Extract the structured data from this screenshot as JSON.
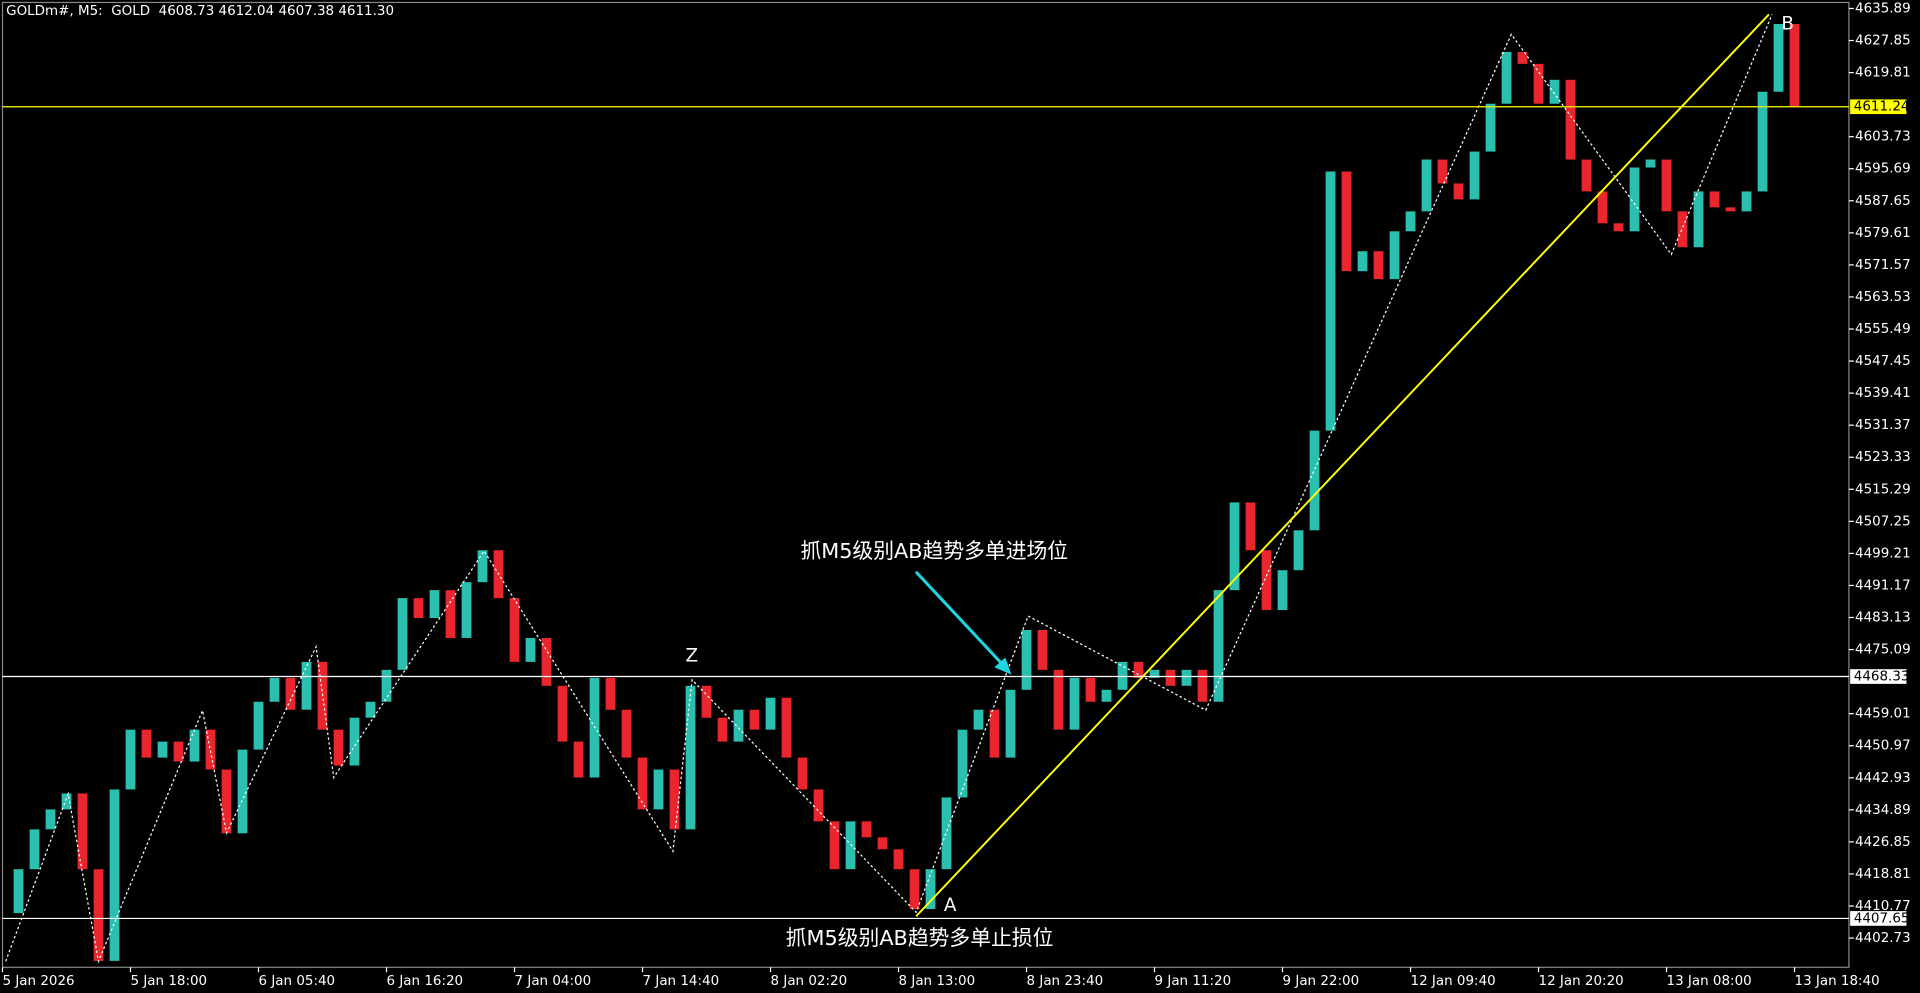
{
  "chart_data": {
    "type": "candlestick",
    "title": "GOLDm#, M5:  GOLD  4608.73 4612.04 4607.38 4611.30",
    "values": [
      4409,
      4420,
      4430,
      4435,
      4439,
      4420,
      4397,
      4440,
      4455,
      4448,
      4452,
      4447,
      4455,
      4445,
      4429,
      4450,
      4462,
      4468,
      4460,
      4472,
      4455,
      4446,
      4458,
      4462,
      4470,
      4488,
      4483,
      4490,
      4478,
      4492,
      4500,
      4488,
      4472,
      4478,
      4466,
      4452,
      4443,
      4468,
      4460,
      4448,
      4435,
      4445,
      4430,
      4466,
      4458,
      4452,
      4460,
      4455,
      4463,
      4448,
      4440,
      4432,
      4420,
      4432,
      4428,
      4425,
      4420,
      4410,
      4420,
      4438,
      4455,
      4460,
      4448,
      4465,
      4480,
      4470,
      4455,
      4468,
      4462,
      4465,
      4472,
      4468,
      4470,
      4466,
      4470,
      4462,
      4490,
      4512,
      4500,
      4485,
      4495,
      4505,
      4530,
      4595,
      4570,
      4575,
      4568,
      4580,
      4585,
      4598,
      4592,
      4588,
      4600,
      4612,
      4625,
      4622,
      4612,
      4618,
      4598,
      4590,
      4582,
      4580,
      4596,
      4598,
      4585,
      4576,
      4590,
      4586,
      4585,
      4590,
      4615,
      4632,
      4611.3
    ],
    "up_color": "#2bbfb0",
    "down_color": "#e8262c",
    "xlim": [
      0,
      115.4
    ],
    "xticks": [
      {
        "value": 0,
        "label": "5 Jan 2026"
      },
      {
        "value": 8,
        "label": "5 Jan 18:00"
      },
      {
        "value": 16,
        "label": "6 Jan 05:40"
      },
      {
        "value": 24,
        "label": "6 Jan 16:20"
      },
      {
        "value": 32,
        "label": "7 Jan 04:00"
      },
      {
        "value": 40,
        "label": "7 Jan 14:40"
      },
      {
        "value": 48,
        "label": "8 Jan 02:20"
      },
      {
        "value": 56,
        "label": "8 Jan 13:00"
      },
      {
        "value": 64,
        "label": "8 Jan 23:40"
      },
      {
        "value": 72,
        "label": "9 Jan 11:20"
      },
      {
        "value": 80,
        "label": "9 Jan 22:00"
      },
      {
        "value": 88,
        "label": "12 Jan 09:40"
      },
      {
        "value": 96,
        "label": "12 Jan 20:20"
      },
      {
        "value": 104,
        "label": "13 Jan 08:00"
      },
      {
        "value": 112,
        "label": "13 Jan 18:40"
      }
    ],
    "ylim": [
      4395.4,
      4637.4
    ],
    "yticks": [
      4635.89,
      4627.85,
      4619.81,
      4603.73,
      4595.69,
      4587.65,
      4579.61,
      4571.57,
      4563.53,
      4555.49,
      4547.45,
      4539.41,
      4531.37,
      4523.33,
      4515.29,
      4507.25,
      4499.21,
      4491.17,
      4483.13,
      4475.09,
      4459.01,
      4450.97,
      4442.93,
      4434.89,
      4426.85,
      4418.81,
      4410.77,
      4402.73
    ],
    "hlines": [
      {
        "value": 4611.24,
        "color": "#ffff00"
      },
      {
        "value": 4468.33,
        "color": "#ffffff"
      },
      {
        "value": 4407.65,
        "color": "#ffffff"
      }
    ],
    "trendline": {
      "x": [
        57.1,
        110.4
      ],
      "y": [
        4408.2,
        4634.4
      ],
      "color": "#ffff00"
    },
    "zigzag": {
      "x": [
        0.2,
        4.1,
        6.0,
        12.5,
        14.0,
        19.6,
        20.7,
        30.1,
        41.9,
        43.1,
        57.1,
        64.1,
        75.2,
        94.3,
        104.3,
        110.6
      ],
      "y": [
        4396.9,
        4438.9,
        4396.9,
        4459.8,
        4429.1,
        4475.8,
        4443.0,
        4499.8,
        4424.5,
        4467.5,
        4409.2,
        4483.5,
        4459.9,
        4629.4,
        4574.2,
        4634.4
      ],
      "color": "#ffffff"
    },
    "annotations": [
      "Z",
      "A",
      "B",
      "抓M5级别AB趋势多单进场位",
      "抓M5级别AB趋势多单止损位"
    ]
  }
}
